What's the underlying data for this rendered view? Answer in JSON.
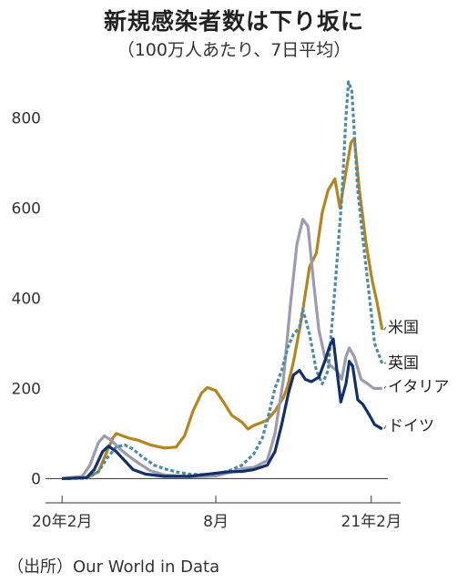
{
  "header": {
    "title": "新規感染者数は下り坂に",
    "subtitle": "（100万人あたり、7日平均）"
  },
  "footer": {
    "source": "（出所）Our World in Data"
  },
  "chart_data": {
    "type": "line",
    "title": "新規感染者数は下り坂に",
    "subtitle": "（100万人あたり、7日平均）",
    "xlabel": "",
    "ylabel": "",
    "x_tick_labels": [
      "20年2月",
      "8月",
      "21年2月"
    ],
    "x_ticks": [
      "2020-02-01",
      "2020-08-01",
      "2021-02-01"
    ],
    "y_ticks": [
      0,
      200,
      400,
      600,
      800
    ],
    "ylim": [
      -80,
      900
    ],
    "xlim": [
      "2020-01-21",
      "2021-02-25"
    ],
    "grid": false,
    "legend": "series labels at right end of lines",
    "series": [
      {
        "name": "米国",
        "color": "#b5851f",
        "dash": "solid",
        "points": [
          [
            "2020-02-01",
            0
          ],
          [
            "2020-03-01",
            2
          ],
          [
            "2020-03-15",
            15
          ],
          [
            "2020-03-25",
            60
          ],
          [
            "2020-04-01",
            90
          ],
          [
            "2020-04-05",
            100
          ],
          [
            "2020-04-20",
            90
          ],
          [
            "2020-05-01",
            85
          ],
          [
            "2020-05-15",
            75
          ],
          [
            "2020-06-01",
            68
          ],
          [
            "2020-06-15",
            70
          ],
          [
            "2020-06-25",
            95
          ],
          [
            "2020-07-05",
            150
          ],
          [
            "2020-07-15",
            190
          ],
          [
            "2020-07-22",
            202
          ],
          [
            "2020-08-01",
            195
          ],
          [
            "2020-08-10",
            170
          ],
          [
            "2020-08-20",
            140
          ],
          [
            "2020-09-01",
            125
          ],
          [
            "2020-09-08",
            110
          ],
          [
            "2020-09-15",
            118
          ],
          [
            "2020-09-25",
            125
          ],
          [
            "2020-10-01",
            130
          ],
          [
            "2020-10-10",
            150
          ],
          [
            "2020-10-20",
            180
          ],
          [
            "2020-10-25",
            205
          ],
          [
            "2020-11-01",
            260
          ],
          [
            "2020-11-10",
            350
          ],
          [
            "2020-11-20",
            470
          ],
          [
            "2020-11-28",
            500
          ],
          [
            "2020-12-05",
            590
          ],
          [
            "2020-12-12",
            640
          ],
          [
            "2020-12-20",
            665
          ],
          [
            "2020-12-26",
            600
          ],
          [
            "2021-01-02",
            680
          ],
          [
            "2021-01-08",
            745
          ],
          [
            "2021-01-12",
            755
          ],
          [
            "2021-01-18",
            640
          ],
          [
            "2021-01-26",
            520
          ],
          [
            "2021-02-02",
            440
          ],
          [
            "2021-02-08",
            390
          ],
          [
            "2021-02-14",
            330
          ]
        ]
      },
      {
        "name": "英国",
        "color": "#4e8aaa",
        "dash": "dotted",
        "points": [
          [
            "2020-02-01",
            0
          ],
          [
            "2020-03-01",
            1
          ],
          [
            "2020-03-15",
            15
          ],
          [
            "2020-03-25",
            45
          ],
          [
            "2020-04-05",
            70
          ],
          [
            "2020-04-15",
            75
          ],
          [
            "2020-04-25",
            65
          ],
          [
            "2020-05-05",
            50
          ],
          [
            "2020-05-20",
            30
          ],
          [
            "2020-06-01",
            22
          ],
          [
            "2020-06-15",
            15
          ],
          [
            "2020-07-01",
            10
          ],
          [
            "2020-07-15",
            9
          ],
          [
            "2020-08-01",
            11
          ],
          [
            "2020-08-15",
            16
          ],
          [
            "2020-09-01",
            30
          ],
          [
            "2020-09-15",
            55
          ],
          [
            "2020-09-25",
            90
          ],
          [
            "2020-10-01",
            130
          ],
          [
            "2020-10-10",
            200
          ],
          [
            "2020-10-18",
            240
          ],
          [
            "2020-10-25",
            290
          ],
          [
            "2020-11-01",
            320
          ],
          [
            "2020-11-08",
            335
          ],
          [
            "2020-11-12",
            375
          ],
          [
            "2020-11-20",
            320
          ],
          [
            "2020-11-28",
            240
          ],
          [
            "2020-12-05",
            210
          ],
          [
            "2020-12-12",
            240
          ],
          [
            "2020-12-20",
            420
          ],
          [
            "2020-12-28",
            620
          ],
          [
            "2021-01-02",
            800
          ],
          [
            "2021-01-05",
            880
          ],
          [
            "2021-01-09",
            860
          ],
          [
            "2021-01-16",
            640
          ],
          [
            "2021-01-24",
            500
          ],
          [
            "2021-01-30",
            400
          ],
          [
            "2021-02-05",
            300
          ],
          [
            "2021-02-14",
            255
          ]
        ]
      },
      {
        "name": "イタリア",
        "color": "#9b9cb0",
        "dash": "solid",
        "points": [
          [
            "2020-02-01",
            0
          ],
          [
            "2020-02-25",
            5
          ],
          [
            "2020-03-05",
            30
          ],
          [
            "2020-03-15",
            80
          ],
          [
            "2020-03-22",
            95
          ],
          [
            "2020-03-30",
            85
          ],
          [
            "2020-04-10",
            65
          ],
          [
            "2020-04-20",
            50
          ],
          [
            "2020-05-01",
            35
          ],
          [
            "2020-05-15",
            18
          ],
          [
            "2020-06-01",
            8
          ],
          [
            "2020-07-01",
            4
          ],
          [
            "2020-08-01",
            6
          ],
          [
            "2020-08-20",
            15
          ],
          [
            "2020-09-01",
            22
          ],
          [
            "2020-09-15",
            25
          ],
          [
            "2020-10-01",
            40
          ],
          [
            "2020-10-10",
            100
          ],
          [
            "2020-10-20",
            220
          ],
          [
            "2020-10-28",
            380
          ],
          [
            "2020-11-05",
            520
          ],
          [
            "2020-11-12",
            575
          ],
          [
            "2020-11-18",
            560
          ],
          [
            "2020-11-25",
            430
          ],
          [
            "2020-12-01",
            330
          ],
          [
            "2020-12-08",
            270
          ],
          [
            "2020-12-15",
            250
          ],
          [
            "2020-12-22",
            240
          ],
          [
            "2020-12-28",
            220
          ],
          [
            "2021-01-02",
            270
          ],
          [
            "2021-01-06",
            290
          ],
          [
            "2021-01-12",
            270
          ],
          [
            "2021-01-20",
            220
          ],
          [
            "2021-01-28",
            210
          ],
          [
            "2021-02-04",
            200
          ],
          [
            "2021-02-14",
            200
          ]
        ]
      },
      {
        "name": "ドイツ",
        "color": "#13306b",
        "dash": "solid",
        "points": [
          [
            "2020-02-01",
            0
          ],
          [
            "2020-03-01",
            2
          ],
          [
            "2020-03-10",
            20
          ],
          [
            "2020-03-20",
            60
          ],
          [
            "2020-03-27",
            72
          ],
          [
            "2020-04-05",
            60
          ],
          [
            "2020-04-15",
            40
          ],
          [
            "2020-04-25",
            20
          ],
          [
            "2020-05-10",
            10
          ],
          [
            "2020-06-01",
            5
          ],
          [
            "2020-07-01",
            5
          ],
          [
            "2020-08-01",
            12
          ],
          [
            "2020-08-15",
            15
          ],
          [
            "2020-09-01",
            16
          ],
          [
            "2020-09-15",
            20
          ],
          [
            "2020-10-01",
            30
          ],
          [
            "2020-10-10",
            60
          ],
          [
            "2020-10-18",
            120
          ],
          [
            "2020-10-26",
            190
          ],
          [
            "2020-11-01",
            230
          ],
          [
            "2020-11-08",
            240
          ],
          [
            "2020-11-15",
            220
          ],
          [
            "2020-11-22",
            215
          ],
          [
            "2020-12-01",
            225
          ],
          [
            "2020-12-08",
            260
          ],
          [
            "2020-12-14",
            295
          ],
          [
            "2020-12-18",
            310
          ],
          [
            "2020-12-23",
            230
          ],
          [
            "2020-12-27",
            170
          ],
          [
            "2021-01-02",
            210
          ],
          [
            "2021-01-06",
            260
          ],
          [
            "2021-01-10",
            250
          ],
          [
            "2021-01-16",
            175
          ],
          [
            "2021-01-22",
            165
          ],
          [
            "2021-01-30",
            140
          ],
          [
            "2021-02-05",
            120
          ],
          [
            "2021-02-14",
            110
          ]
        ]
      }
    ]
  }
}
